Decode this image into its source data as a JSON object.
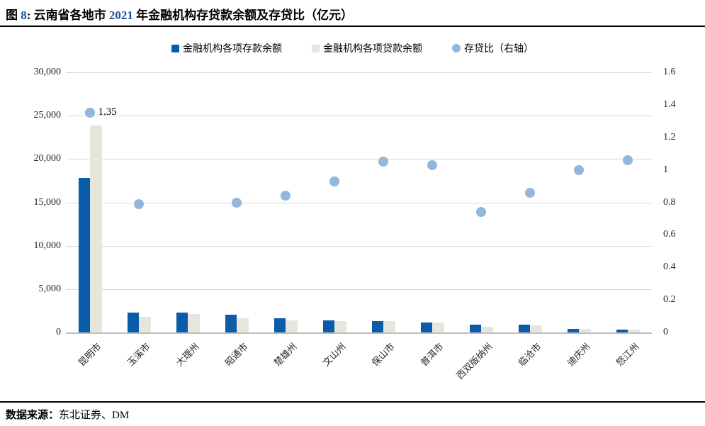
{
  "header": {
    "fig_prefix": "图 ",
    "fig_number": "8",
    "fig_sep": ":  ",
    "title_part1": "云南省各地市 ",
    "title_year": "2021",
    "title_part2": " 年金融机构存贷款余额及存贷比（亿元）"
  },
  "legend": {
    "items": [
      {
        "label": "金融机构各项存款余额",
        "marker": "square"
      },
      {
        "label": "金融机构各项贷款余额",
        "marker": "square"
      },
      {
        "label": "存贷比（右轴）",
        "marker": "circle"
      }
    ]
  },
  "footer": {
    "source_label": "数据来源：",
    "source_text": "东北证券、DM"
  },
  "colors": {
    "deposit_bar": "#0A5CA8",
    "loan_bar": "#E8E5DE",
    "ratio_dot": "#93B6DC",
    "accent_blue": "#1F4EA1",
    "gridline": "#D9D9D9",
    "baseline": "#BFBFBF"
  },
  "chart_data": {
    "type": "combo: grouped bar + scatter (secondary axis)",
    "title": "云南省各地市2021年金融机构存贷款余额及存贷比（亿元）",
    "categories": [
      "昆明市",
      "玉溪市",
      "大理州",
      "昭通市",
      "楚雄州",
      "文山州",
      "保山市",
      "普洱市",
      "西双版纳州",
      "临沧市",
      "迪庆州",
      "怒江州"
    ],
    "series": [
      {
        "name": "金融机构各项存款余额",
        "type": "bar",
        "axis": "left",
        "color": "#0A5CA8",
        "values": [
          17800,
          2250,
          2250,
          2080,
          1630,
          1400,
          1280,
          1120,
          930,
          900,
          430,
          310
        ]
      },
      {
        "name": "金融机构各项贷款余额",
        "type": "bar",
        "axis": "left",
        "color": "#E8E5DE",
        "values": [
          23900,
          1780,
          2150,
          1670,
          1370,
          1300,
          1340,
          1150,
          690,
          780,
          430,
          330
        ]
      },
      {
        "name": "存贷比（右轴）",
        "type": "scatter",
        "axis": "right",
        "color": "#93B6DC",
        "values": [
          1.35,
          0.79,
          null,
          0.8,
          0.84,
          0.93,
          1.05,
          1.03,
          0.74,
          0.86,
          1.0,
          1.06
        ]
      }
    ],
    "left_axis": {
      "min": 0,
      "max": 30000,
      "tick_labels": [
        "30,000",
        "25,000",
        "20,000",
        "15,000",
        "10,000",
        "5,000",
        "0"
      ]
    },
    "right_axis": {
      "min": 0,
      "max": 1.6,
      "tick_labels": [
        "1.6",
        "1.4",
        "1.2",
        "1",
        "0.8",
        "0.6",
        "0.4",
        "0.2",
        "0"
      ]
    },
    "grid": "horizontal",
    "legend_position": "top",
    "annotations": [
      {
        "text": "1.35",
        "category_index": 0,
        "value": 1.35
      }
    ]
  }
}
